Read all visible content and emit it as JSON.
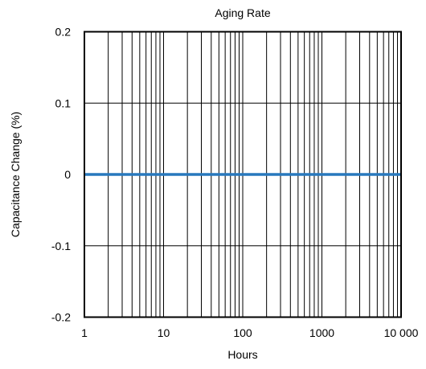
{
  "chart_data": {
    "type": "line",
    "title": "Aging Rate",
    "xlabel": "Hours",
    "ylabel": "Capacitance Change (%)",
    "x_scale": "log",
    "xlim": [
      1,
      10000
    ],
    "ylim": [
      -0.2,
      0.2
    ],
    "x_ticks": [
      1,
      10,
      100,
      1000,
      10000
    ],
    "x_tick_labels": [
      "1",
      "10",
      "100",
      "1000",
      "10 000"
    ],
    "y_ticks": [
      0.2,
      0.1,
      0,
      -0.1,
      -0.2
    ],
    "y_tick_labels": [
      "0.2",
      "0.1",
      "0",
      "-0.1",
      "-0.2"
    ],
    "grid": true,
    "series": [
      {
        "x": [
          1,
          10,
          100,
          1000,
          10000
        ],
        "y": [
          0,
          0,
          0,
          0,
          0
        ],
        "color": "#2878bd"
      }
    ]
  }
}
